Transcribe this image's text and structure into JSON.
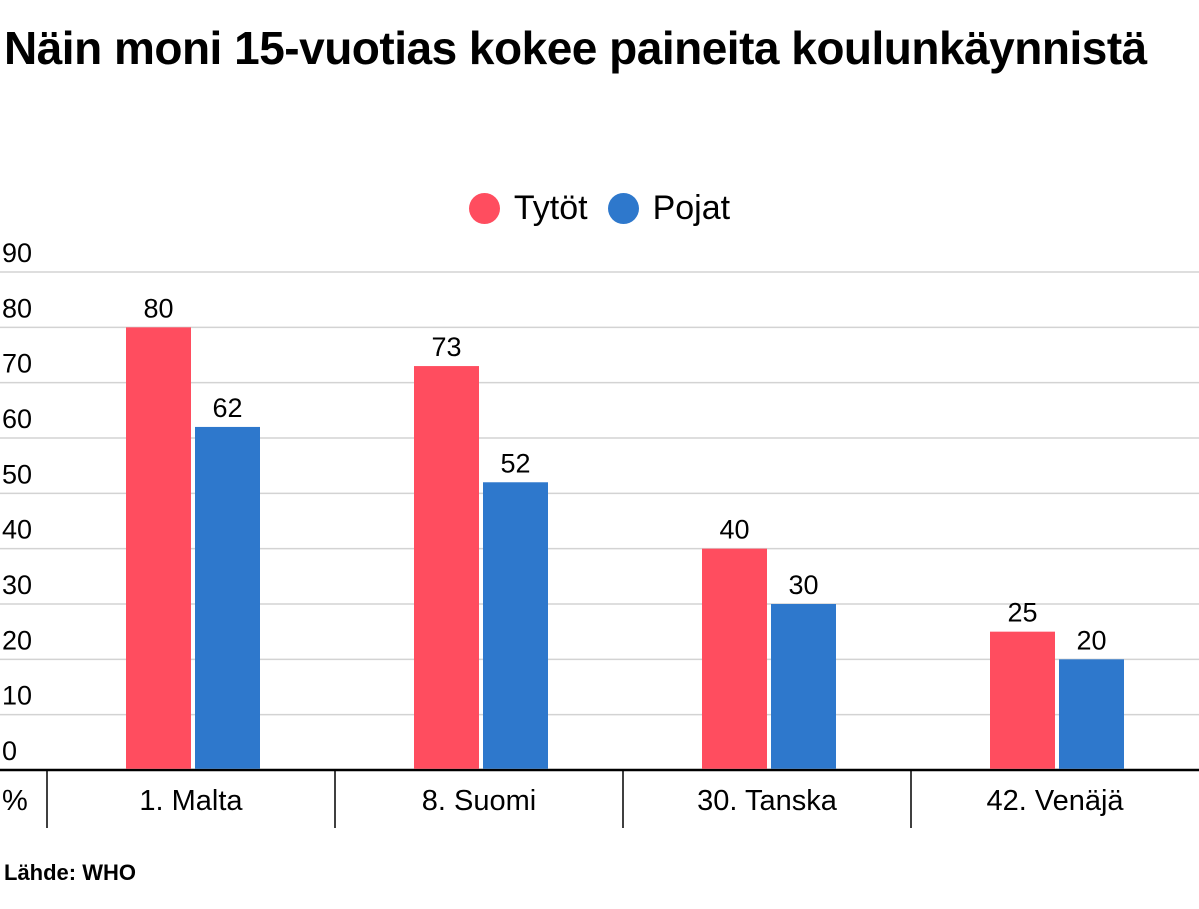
{
  "title": "Näin moni 15-vuotias kokee paineita koulunkäynnistä",
  "source": "Lähde: WHO",
  "chart_data": {
    "type": "bar",
    "title": "Näin moni 15-vuotias kokee paineita koulunkäynnistä",
    "categories": [
      "1. Malta",
      "8. Suomi",
      "30. Tanska",
      "42. Venäjä"
    ],
    "series": [
      {
        "name": "Tytöt",
        "color": "#FF4D5F",
        "values": [
          80,
          73,
          40,
          25
        ]
      },
      {
        "name": "Pojat",
        "color": "#2E78CC",
        "values": [
          62,
          52,
          30,
          20
        ]
      }
    ],
    "ylim": [
      0,
      90
    ],
    "yticks": [
      0,
      10,
      20,
      30,
      40,
      50,
      60,
      70,
      80,
      90
    ],
    "ylabel": "%",
    "xlabel": "",
    "legend_position": "top-center",
    "grid": true
  }
}
